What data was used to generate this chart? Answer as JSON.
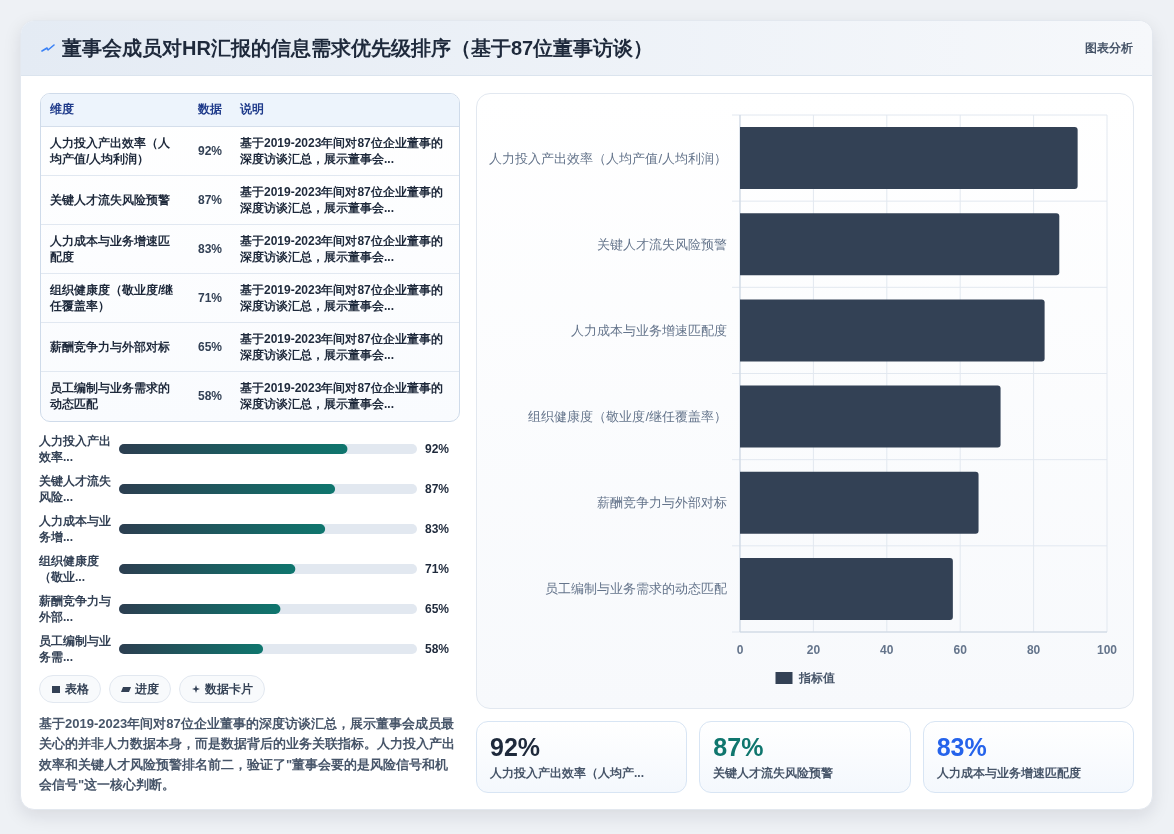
{
  "chart_data": [
    {
      "type": "other",
      "title": "董事会成员对HR汇报的信息需求优先级排序（基于87位董事访谈）",
      "categories": [
        "人力投入产出效率（人均产值/人均利润）",
        "关键人才流失风险预警",
        "人力成本与业务增速匹配度",
        "组织健康度（敬业度/继任覆盖率）",
        "薪酬竞争力与外部对标",
        "员工编制与业务需求的动态匹配"
      ],
      "value_labels": [
        "92%",
        "87%",
        "83%",
        "71%",
        "65%",
        "58%"
      ],
      "annotations": [
        "维度",
        "数据",
        "说明",
        "基于2019-2023年间对87位企业董事的深度访谈汇总，展示董事会...",
        "基于2019-2023年间对87位企业董事的深度访谈汇总，展示董事会...",
        "基于2019-2023年间对87位企业董事的深度访谈汇总，展示董事会...",
        "基于2019-2023年间对87位企业董事的深度访谈汇总，展示董事会...",
        "基于2019-2023年间对87位企业董事的深度访谈汇总，展示董事会...",
        "基于2019-2023年间对87位企业董事的深度访谈汇总，展示董事会..."
      ]
    },
    {
      "type": "bar",
      "orientation": "horizontal",
      "annotations": [
        "图表分析"
      ],
      "categories": [
        "人力投入产出效率（人均产值/人均利润）",
        "关键人才流失风险预警",
        "人力成本与业务增速匹配度",
        "组织健康度（敬业度/继任覆盖率）",
        "薪酬竞争力与外部对标",
        "员工编制与业务需求的动态匹配"
      ],
      "series": [
        {
          "name": "指标值",
          "color": "#334155",
          "values": [
            92,
            87,
            83,
            71,
            65,
            58
          ]
        }
      ],
      "xlim": [
        0,
        100
      ],
      "xticks": [
        0,
        20,
        40,
        60,
        80,
        100
      ],
      "grid": true,
      "legend": "bottom"
    },
    {
      "type": "bar",
      "orientation": "horizontal",
      "categories": [
        "人力投入产出效率...",
        "关键人才流失风险...",
        "人力成本与业务增...",
        "组织健康度（敬业...",
        "薪酬竞争力与外部...",
        "员工编制与业务需..."
      ],
      "series": [
        {
          "color": "#0f766e",
          "values": [
            92,
            87,
            83,
            71,
            65,
            58
          ],
          "value_labels": [
            "92%",
            "87%",
            "83%",
            "71%",
            "65%",
            "58%"
          ]
        }
      ],
      "xlim": [
        0,
        120
      ],
      "tick_labels": "y",
      "annotations": [
        "表格",
        "进度",
        "数据卡片",
        "基于2019-2023年间对87位企业董事的深度访谈汇总，展示董事会成员最关心的并非人力数据本身，而是数据背后的业务关联指标。人力投入产出效率和关键人才风险预警排名前二，验证了\"董事会要的是风险信号和机会信号\"这一核心判断。"
      ]
    },
    {
      "type": "other",
      "categories": [
        "人力投入产出效率（人均产...",
        "关键人才流失风险预警",
        "人力成本与业务增速匹配度"
      ],
      "value_labels": [
        "92%",
        "87%",
        "83%"
      ]
    }
  ]
}
